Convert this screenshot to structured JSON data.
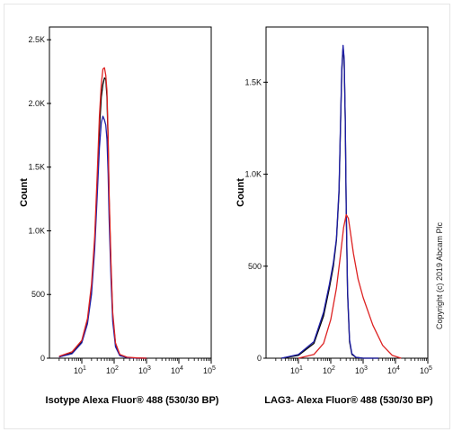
{
  "chart_data": [
    {
      "type": "line",
      "xscale": "log",
      "xlim": [
        1,
        100000
      ],
      "ylim": [
        0,
        2600
      ],
      "ylabel": "Count",
      "xlabel": "Isotype Alexa Fluor® 488 (530/30 BP)",
      "yticks": [
        {
          "value": 0,
          "label": "0"
        },
        {
          "value": 500,
          "label": "500"
        },
        {
          "value": 1000,
          "label": "1.0K"
        },
        {
          "value": 1500,
          "label": "1.5K"
        },
        {
          "value": 2000,
          "label": "2.0K"
        },
        {
          "value": 2500,
          "label": "2.5K"
        }
      ],
      "xticks": [
        {
          "value": 10,
          "base": "10",
          "exp": "1"
        },
        {
          "value": 100,
          "base": "10",
          "exp": "2"
        },
        {
          "value": 1000,
          "base": "10",
          "exp": "3"
        },
        {
          "value": 10000,
          "base": "10",
          "exp": "4"
        },
        {
          "value": 100000,
          "base": "10",
          "exp": "5"
        }
      ],
      "series": [
        {
          "color": "#000000",
          "x": [
            2,
            5,
            10,
            15,
            20,
            25,
            30,
            35,
            40,
            45,
            50,
            55,
            60,
            65,
            70,
            80,
            90,
            110,
            150,
            250,
            500,
            1000
          ],
          "y": [
            10,
            40,
            130,
            290,
            540,
            900,
            1380,
            1800,
            2050,
            2150,
            2200,
            2190,
            2050,
            1700,
            1250,
            700,
            330,
            110,
            25,
            5,
            0,
            0
          ]
        },
        {
          "color": "#1f1fa8",
          "x": [
            2,
            5,
            10,
            15,
            20,
            25,
            30,
            35,
            40,
            45,
            50,
            55,
            60,
            65,
            70,
            80,
            90,
            110,
            150,
            250,
            500,
            1000
          ],
          "y": [
            10,
            35,
            120,
            270,
            500,
            850,
            1280,
            1650,
            1850,
            1900,
            1870,
            1830,
            1720,
            1450,
            1100,
            620,
            290,
            90,
            20,
            5,
            0,
            0
          ]
        },
        {
          "color": "#dd2222",
          "x": [
            2,
            5,
            10,
            15,
            20,
            25,
            30,
            35,
            40,
            45,
            50,
            55,
            60,
            65,
            70,
            80,
            90,
            110,
            150,
            250,
            500,
            1000
          ],
          "y": [
            15,
            50,
            140,
            310,
            580,
            950,
            1450,
            1900,
            2150,
            2270,
            2280,
            2220,
            2100,
            1750,
            1300,
            750,
            360,
            120,
            30,
            8,
            2,
            0
          ]
        }
      ]
    },
    {
      "type": "line",
      "xscale": "log",
      "xlim": [
        1,
        100000
      ],
      "ylim": [
        0,
        1800
      ],
      "ylabel": "Count",
      "xlabel": "LAG3- Alexa Fluor® 488 (530/30 BP)",
      "yticks": [
        {
          "value": 0,
          "label": "0"
        },
        {
          "value": 500,
          "label": "500"
        },
        {
          "value": 1000,
          "label": "1.0K"
        },
        {
          "value": 1500,
          "label": "1.5K"
        }
      ],
      "xticks": [
        {
          "value": 10,
          "base": "10",
          "exp": "1"
        },
        {
          "value": 100,
          "base": "10",
          "exp": "2"
        },
        {
          "value": 1000,
          "base": "10",
          "exp": "3"
        },
        {
          "value": 10000,
          "base": "10",
          "exp": "4"
        },
        {
          "value": 100000,
          "base": "10",
          "exp": "5"
        }
      ],
      "series": [
        {
          "color": "#000000",
          "x": [
            3,
            10,
            30,
            60,
            90,
            120,
            150,
            180,
            200,
            220,
            240,
            260,
            280,
            300,
            330,
            380,
            450,
            600,
            1000,
            3000
          ],
          "y": [
            0,
            15,
            80,
            230,
            380,
            500,
            640,
            900,
            1250,
            1560,
            1690,
            1620,
            1300,
            800,
            350,
            90,
            20,
            5,
            0,
            0
          ]
        },
        {
          "color": "#1f1fa8",
          "x": [
            3,
            10,
            30,
            60,
            90,
            120,
            150,
            180,
            200,
            220,
            240,
            260,
            280,
            300,
            330,
            380,
            450,
            600,
            1000,
            3000
          ],
          "y": [
            0,
            20,
            90,
            250,
            400,
            520,
            650,
            920,
            1270,
            1580,
            1700,
            1630,
            1310,
            820,
            370,
            100,
            25,
            5,
            0,
            0
          ]
        },
        {
          "color": "#dd2222",
          "x": [
            10,
            30,
            60,
            100,
            150,
            200,
            250,
            300,
            350,
            400,
            500,
            700,
            1000,
            2000,
            4000,
            8000,
            15000
          ],
          "y": [
            0,
            20,
            80,
            210,
            380,
            560,
            710,
            780,
            760,
            690,
            570,
            430,
            330,
            180,
            70,
            15,
            0
          ]
        }
      ]
    }
  ],
  "copyright": "Copyright (c) 2019 Abcam Plc"
}
